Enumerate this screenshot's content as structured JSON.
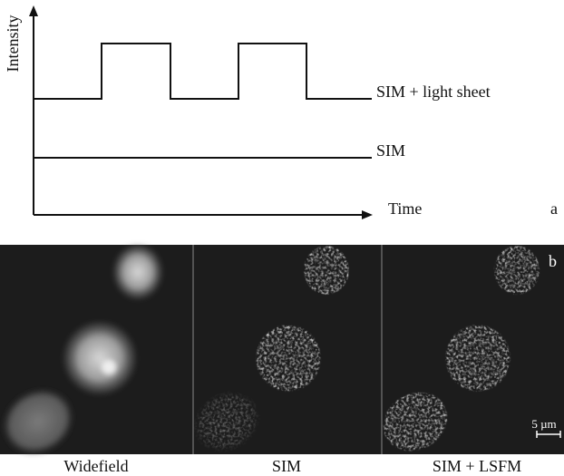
{
  "panel_a": {
    "y_axis_label": "Intensity",
    "x_axis_label": "Time",
    "curves": [
      "SIM + light sheet",
      "SIM"
    ],
    "panel_label": "a"
  },
  "panel_b": {
    "panel_label": "b",
    "scale_bar": "5 µm",
    "captions": [
      "Widefield",
      "SIM",
      "SIM + LSFM"
    ]
  }
}
